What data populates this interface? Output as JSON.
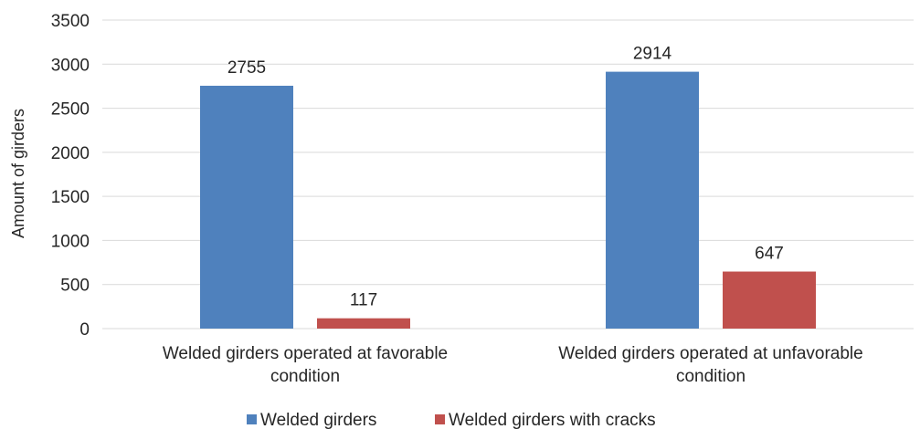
{
  "chart_data": {
    "type": "bar",
    "title": "",
    "xlabel": "",
    "ylabel": "Amount of girders",
    "ylim": [
      0,
      3500
    ],
    "yticks": [
      0,
      500,
      1000,
      1500,
      2000,
      2500,
      3000,
      3500
    ],
    "grid": true,
    "legend_position": "bottom",
    "categories": [
      [
        "Welded girders operated at favorable",
        "condition"
      ],
      [
        "Welded girders operated at unfavorable",
        "condition"
      ]
    ],
    "series": [
      {
        "name": "Welded girders",
        "color": "#4f81bd",
        "values": [
          2755,
          2914
        ]
      },
      {
        "name": "Welded girders with cracks",
        "color": "#c0504d",
        "values": [
          117,
          647
        ]
      }
    ]
  }
}
